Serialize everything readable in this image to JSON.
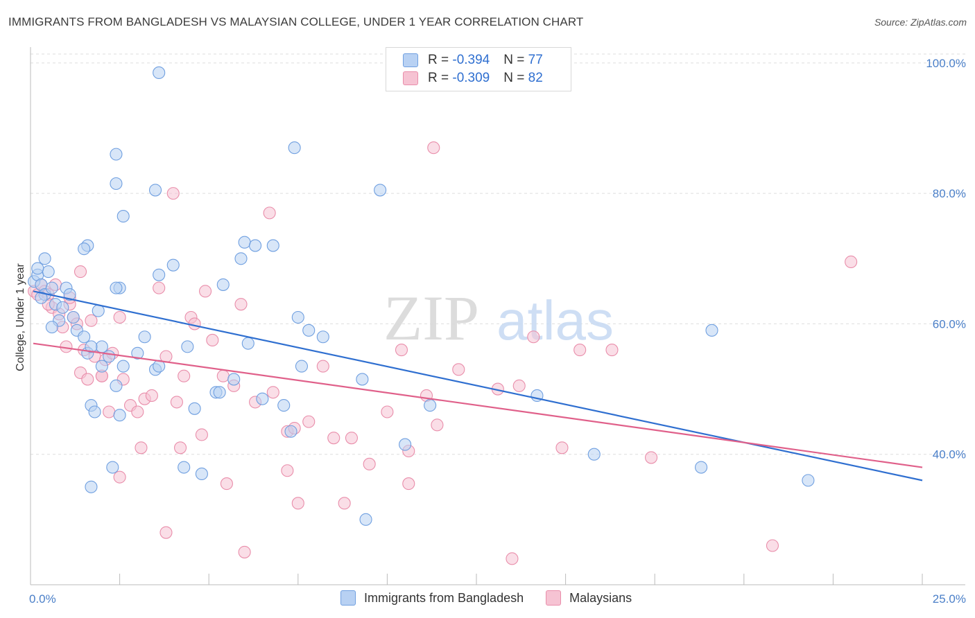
{
  "title": "IMMIGRANTS FROM BANGLADESH VS MALAYSIAN COLLEGE, UNDER 1 YEAR CORRELATION CHART",
  "source": "Source: ZipAtlas.com",
  "watermark": {
    "zip": "ZIP",
    "atlas": "atlas"
  },
  "legend": {
    "series1": {
      "r_label": "R = ",
      "r_value": "-0.394",
      "n_label": "N = ",
      "n_value": "77"
    },
    "series2": {
      "r_label": "R = ",
      "r_value": "-0.309",
      "n_label": "N = ",
      "n_value": "82"
    }
  },
  "colors": {
    "blue_fill": "#b8d1f3",
    "blue_stroke": "#6f9fe0",
    "blue_line": "#2f6fd0",
    "pink_fill": "#f6c3d3",
    "pink_stroke": "#e98daa",
    "pink_line": "#e0608a",
    "grid": "#dddddd",
    "axis_label": "#4a7fc8"
  },
  "chart_data": {
    "type": "scatter",
    "title": "IMMIGRANTS FROM BANGLADESH VS MALAYSIAN COLLEGE, UNDER 1 YEAR CORRELATION CHART",
    "xlabel": "",
    "ylabel": "College, Under 1 year",
    "xlim": [
      0,
      25
    ],
    "ylim": [
      20,
      102
    ],
    "x_tick_labels": [
      "0.0%",
      "25.0%"
    ],
    "y_ticks": [
      40,
      60,
      80,
      100
    ],
    "y_tick_labels": [
      "40.0%",
      "60.0%",
      "80.0%",
      "100.0%"
    ],
    "series": [
      {
        "name": "Immigrants from Bangladesh",
        "color": "blue",
        "trend": {
          "x": [
            0,
            25
          ],
          "y": [
            65,
            36
          ]
        },
        "points": [
          [
            0.1,
            66.5
          ],
          [
            0.2,
            67.5
          ],
          [
            0.3,
            66
          ],
          [
            0.4,
            64.5
          ],
          [
            0.5,
            68
          ],
          [
            0.2,
            68.5
          ],
          [
            0.4,
            70
          ],
          [
            0.6,
            65.5
          ],
          [
            0.7,
            63
          ],
          [
            0.8,
            60.5
          ],
          [
            0.6,
            59.5
          ],
          [
            0.9,
            62.5
          ],
          [
            1.0,
            65.5
          ],
          [
            1.1,
            64.5
          ],
          [
            1.2,
            61
          ],
          [
            1.3,
            59
          ],
          [
            1.5,
            58
          ],
          [
            1.6,
            55.5
          ],
          [
            1.7,
            47.5
          ],
          [
            1.8,
            46.5
          ],
          [
            2.0,
            56.5
          ],
          [
            2.2,
            55
          ],
          [
            2.4,
            50.5
          ],
          [
            2.5,
            46
          ],
          [
            2.6,
            53.5
          ],
          [
            3.0,
            55.5
          ],
          [
            3.2,
            58
          ],
          [
            3.5,
            53
          ],
          [
            3.6,
            53.5
          ],
          [
            4.4,
            56.5
          ],
          [
            4.6,
            47
          ],
          [
            4.8,
            37
          ],
          [
            5.2,
            49.5
          ],
          [
            5.3,
            49.5
          ],
          [
            5.7,
            51.5
          ],
          [
            6.1,
            57
          ],
          [
            6.5,
            48.5
          ],
          [
            7.1,
            47.5
          ],
          [
            7.3,
            43.5
          ],
          [
            7.6,
            53.5
          ],
          [
            7.8,
            59
          ],
          [
            8.2,
            58
          ],
          [
            9.3,
            51.5
          ],
          [
            10.5,
            41.5
          ],
          [
            11.2,
            47.5
          ],
          [
            1.6,
            72
          ],
          [
            1.5,
            71.5
          ],
          [
            2.5,
            65.5
          ],
          [
            2.4,
            65.5
          ],
          [
            3.6,
            67.5
          ],
          [
            4.0,
            69
          ],
          [
            5.4,
            66
          ],
          [
            5.9,
            70
          ],
          [
            6.0,
            72.5
          ],
          [
            6.3,
            72
          ],
          [
            6.8,
            72
          ],
          [
            7.5,
            61
          ],
          [
            2.4,
            86
          ],
          [
            2.6,
            76.5
          ],
          [
            2.4,
            81.5
          ],
          [
            3.5,
            80.5
          ],
          [
            3.6,
            98.5
          ],
          [
            7.4,
            87
          ],
          [
            9.8,
            80.5
          ],
          [
            1.7,
            56.5
          ],
          [
            2.0,
            53.5
          ],
          [
            2.3,
            38
          ],
          [
            1.7,
            35
          ],
          [
            4.3,
            38
          ],
          [
            9.4,
            30
          ],
          [
            14.2,
            49
          ],
          [
            15.8,
            40
          ],
          [
            18.8,
            38
          ],
          [
            21.8,
            36
          ],
          [
            19.1,
            59
          ],
          [
            1.9,
            62
          ],
          [
            0.3,
            64
          ]
        ]
      },
      {
        "name": "Malaysians",
        "color": "pink",
        "trend": {
          "x": [
            0,
            25
          ],
          "y": [
            57,
            38
          ]
        },
        "points": [
          [
            0.1,
            65
          ],
          [
            0.2,
            64.5
          ],
          [
            0.3,
            66
          ],
          [
            0.4,
            65
          ],
          [
            0.5,
            64.5
          ],
          [
            0.6,
            62.5
          ],
          [
            0.8,
            61.5
          ],
          [
            0.9,
            59.5
          ],
          [
            1.0,
            56.5
          ],
          [
            1.1,
            63
          ],
          [
            1.2,
            61
          ],
          [
            1.3,
            60
          ],
          [
            1.4,
            52.5
          ],
          [
            1.5,
            56
          ],
          [
            1.6,
            51.5
          ],
          [
            1.7,
            60.5
          ],
          [
            1.8,
            55
          ],
          [
            2.0,
            52
          ],
          [
            2.1,
            54.5
          ],
          [
            2.3,
            55.5
          ],
          [
            2.5,
            61
          ],
          [
            2.6,
            51.5
          ],
          [
            2.8,
            47.5
          ],
          [
            3.0,
            46.5
          ],
          [
            3.2,
            48.5
          ],
          [
            3.4,
            49
          ],
          [
            3.6,
            65.5
          ],
          [
            3.8,
            55
          ],
          [
            4.1,
            48
          ],
          [
            4.3,
            52
          ],
          [
            4.5,
            61
          ],
          [
            4.6,
            60
          ],
          [
            4.9,
            65
          ],
          [
            5.1,
            57.5
          ],
          [
            5.4,
            52
          ],
          [
            5.7,
            50.5
          ],
          [
            5.9,
            63
          ],
          [
            6.3,
            48
          ],
          [
            6.8,
            49.5
          ],
          [
            7.2,
            43.5
          ],
          [
            7.4,
            44
          ],
          [
            7.8,
            45
          ],
          [
            8.2,
            53.5
          ],
          [
            8.5,
            42.5
          ],
          [
            9.0,
            42.5
          ],
          [
            9.5,
            38.5
          ],
          [
            10.0,
            46.5
          ],
          [
            10.4,
            56
          ],
          [
            10.6,
            40.5
          ],
          [
            11.1,
            49
          ],
          [
            11.4,
            44.5
          ],
          [
            12.0,
            53
          ],
          [
            13.1,
            50
          ],
          [
            13.7,
            50.5
          ],
          [
            14.1,
            58
          ],
          [
            14.9,
            41
          ],
          [
            15.4,
            56
          ],
          [
            16.3,
            56
          ],
          [
            17.4,
            39.5
          ],
          [
            23.0,
            69.5
          ],
          [
            2.2,
            46.5
          ],
          [
            2.5,
            36.5
          ],
          [
            3.1,
            41
          ],
          [
            4.2,
            41
          ],
          [
            4.8,
            43
          ],
          [
            5.5,
            35.5
          ],
          [
            7.2,
            37.5
          ],
          [
            7.5,
            32.5
          ],
          [
            8.8,
            32.5
          ],
          [
            10.6,
            35.5
          ],
          [
            3.8,
            28
          ],
          [
            6.0,
            25
          ],
          [
            13.5,
            24
          ],
          [
            20.8,
            26
          ],
          [
            4.0,
            80
          ],
          [
            6.7,
            77
          ],
          [
            11.3,
            87
          ],
          [
            1.4,
            68
          ],
          [
            2.0,
            52
          ],
          [
            1.1,
            64
          ],
          [
            0.7,
            66
          ],
          [
            0.5,
            63
          ]
        ]
      }
    ]
  }
}
